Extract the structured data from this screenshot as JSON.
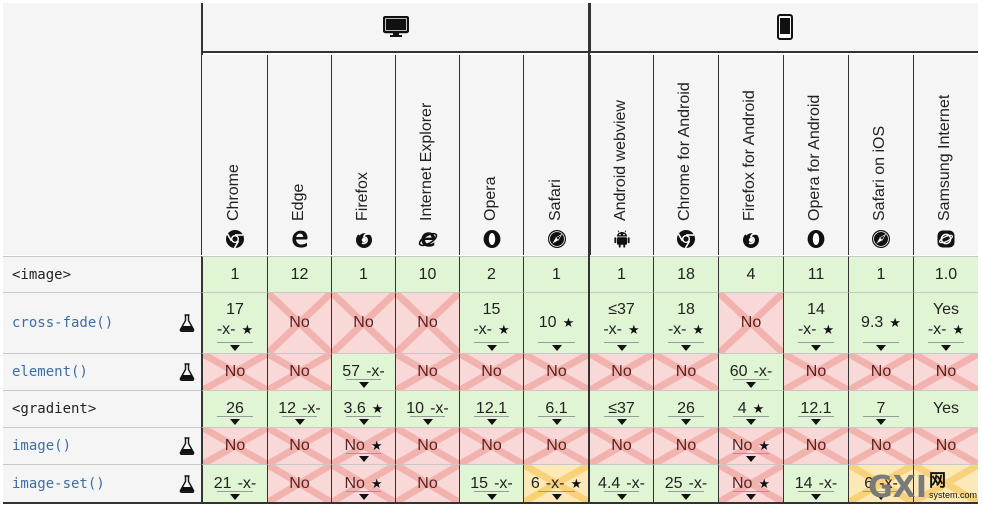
{
  "platforms": [
    {
      "name": "desktop",
      "icon": "desktop-monitor-icon"
    },
    {
      "name": "mobile",
      "icon": "mobile-phone-icon"
    }
  ],
  "browsers": [
    {
      "name": "Chrome",
      "icon": "chrome-icon"
    },
    {
      "name": "Edge",
      "icon": "edge-icon"
    },
    {
      "name": "Firefox",
      "icon": "firefox-icon"
    },
    {
      "name": "Internet Explorer",
      "icon": "internet-explorer-icon"
    },
    {
      "name": "Opera",
      "icon": "opera-icon"
    },
    {
      "name": "Safari",
      "icon": "safari-icon"
    },
    {
      "name": "Android webview",
      "icon": "android-icon"
    },
    {
      "name": "Chrome for Android",
      "icon": "chrome-icon"
    },
    {
      "name": "Firefox for Android",
      "icon": "firefox-icon"
    },
    {
      "name": "Opera for Android",
      "icon": "opera-icon"
    },
    {
      "name": "Safari on iOS",
      "icon": "safari-icon"
    },
    {
      "name": "Samsung Internet",
      "icon": "samsung-internet-icon"
    }
  ],
  "features": [
    {
      "name": "<image>",
      "link": false,
      "experimental": false,
      "cells": [
        {
          "v": "1",
          "s": "yes"
        },
        {
          "v": "12",
          "s": "yes"
        },
        {
          "v": "1",
          "s": "yes"
        },
        {
          "v": "10",
          "s": "yes"
        },
        {
          "v": "2",
          "s": "yes"
        },
        {
          "v": "1",
          "s": "yes"
        },
        {
          "v": "1",
          "s": "yes"
        },
        {
          "v": "18",
          "s": "yes"
        },
        {
          "v": "4",
          "s": "yes"
        },
        {
          "v": "11",
          "s": "yes"
        },
        {
          "v": "1",
          "s": "yes"
        },
        {
          "v": "1.0",
          "s": "yes"
        }
      ]
    },
    {
      "name": "cross-fade()",
      "link": true,
      "experimental": true,
      "cells": [
        {
          "v": "17",
          "sub": "-x-",
          "star": true,
          "s": "yes",
          "tri": true
        },
        {
          "v": "No",
          "s": "no"
        },
        {
          "v": "No",
          "s": "no"
        },
        {
          "v": "No",
          "s": "no"
        },
        {
          "v": "15",
          "sub": "-x-",
          "star": true,
          "s": "yes",
          "tri": true
        },
        {
          "v": "10",
          "star": true,
          "s": "yes",
          "tri": true
        },
        {
          "v": "≤37",
          "sub": "-x-",
          "star": true,
          "s": "yes",
          "tri": true
        },
        {
          "v": "18",
          "sub": "-x-",
          "star": true,
          "s": "yes",
          "tri": true
        },
        {
          "v": "No",
          "s": "no"
        },
        {
          "v": "14",
          "sub": "-x-",
          "star": true,
          "s": "yes",
          "tri": true
        },
        {
          "v": "9.3",
          "star": true,
          "s": "yes",
          "tri": true
        },
        {
          "v": "Yes",
          "sub": "-x-",
          "star": true,
          "s": "yes",
          "tri": true
        }
      ]
    },
    {
      "name": "element()",
      "link": true,
      "experimental": true,
      "cells": [
        {
          "v": "No",
          "s": "no"
        },
        {
          "v": "No",
          "s": "no"
        },
        {
          "v": "57",
          "sub": "-x-",
          "s": "yes",
          "tri": true,
          "inline": true
        },
        {
          "v": "No",
          "s": "no"
        },
        {
          "v": "No",
          "s": "no"
        },
        {
          "v": "No",
          "s": "no"
        },
        {
          "v": "No",
          "s": "no"
        },
        {
          "v": "No",
          "s": "no"
        },
        {
          "v": "60",
          "sub": "-x-",
          "s": "yes",
          "tri": true,
          "inline": true
        },
        {
          "v": "No",
          "s": "no"
        },
        {
          "v": "No",
          "s": "no"
        },
        {
          "v": "No",
          "s": "no"
        }
      ]
    },
    {
      "name": "<gradient>",
      "link": false,
      "experimental": false,
      "cells": [
        {
          "v": "26",
          "s": "yes",
          "tri": true
        },
        {
          "v": "12",
          "sub": "-x-",
          "s": "yes",
          "tri": true,
          "inline": true
        },
        {
          "v": "3.6",
          "star": true,
          "s": "yes",
          "tri": true,
          "inline": true
        },
        {
          "v": "10",
          "sub": "-x-",
          "s": "yes",
          "tri": true,
          "inline": true
        },
        {
          "v": "12.1",
          "s": "yes",
          "tri": true
        },
        {
          "v": "6.1",
          "s": "yes",
          "tri": true
        },
        {
          "v": "≤37",
          "s": "yes",
          "tri": true
        },
        {
          "v": "26",
          "s": "yes",
          "tri": true
        },
        {
          "v": "4",
          "star": true,
          "s": "yes",
          "tri": true,
          "inline": true
        },
        {
          "v": "12.1",
          "s": "yes",
          "tri": true
        },
        {
          "v": "7",
          "s": "yes",
          "tri": true
        },
        {
          "v": "Yes",
          "s": "yes"
        }
      ]
    },
    {
      "name": "image()",
      "link": true,
      "experimental": true,
      "cells": [
        {
          "v": "No",
          "s": "no"
        },
        {
          "v": "No",
          "s": "no"
        },
        {
          "v": "No",
          "star": true,
          "s": "no",
          "tri": true,
          "inline": true
        },
        {
          "v": "No",
          "s": "no"
        },
        {
          "v": "No",
          "s": "no"
        },
        {
          "v": "No",
          "s": "no"
        },
        {
          "v": "No",
          "s": "no"
        },
        {
          "v": "No",
          "s": "no"
        },
        {
          "v": "No",
          "star": true,
          "s": "no",
          "tri": true,
          "inline": true
        },
        {
          "v": "No",
          "s": "no"
        },
        {
          "v": "No",
          "s": "no"
        },
        {
          "v": "No",
          "s": "no"
        }
      ]
    },
    {
      "name": "image-set()",
      "link": true,
      "experimental": true,
      "cells": [
        {
          "v": "21",
          "sub": "-x-",
          "s": "yes",
          "tri": true,
          "inline": true
        },
        {
          "v": "No",
          "s": "no"
        },
        {
          "v": "No",
          "star": true,
          "s": "no",
          "tri": true,
          "inline": true
        },
        {
          "v": "No",
          "s": "no"
        },
        {
          "v": "15",
          "sub": "-x-",
          "s": "yes",
          "tri": true,
          "inline": true
        },
        {
          "v": "6",
          "sub": "-x-",
          "star": true,
          "s": "partial",
          "tri": true,
          "inline": true
        },
        {
          "v": "4.4",
          "sub": "-x-",
          "s": "yes",
          "tri": true,
          "inline": true
        },
        {
          "v": "25",
          "sub": "-x-",
          "s": "yes",
          "tri": true,
          "inline": true
        },
        {
          "v": "No",
          "star": true,
          "s": "no",
          "tri": true,
          "inline": true
        },
        {
          "v": "14",
          "sub": "-x-",
          "s": "yes",
          "tri": true,
          "inline": true
        },
        {
          "v": "6",
          "sub": "-x-",
          "s": "partial",
          "tri": true,
          "inline": true
        },
        {
          "v": "",
          "s": "partial"
        }
      ]
    }
  ],
  "watermark": {
    "logo": "GXI",
    "cn": "网",
    "url": "system.com"
  }
}
